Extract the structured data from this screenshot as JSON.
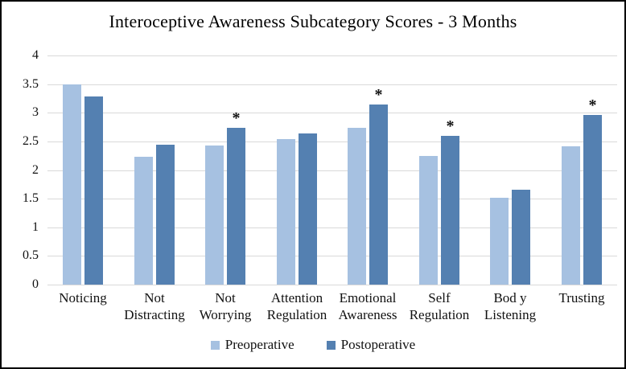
{
  "chart_data": {
    "type": "bar",
    "title": "Interoceptive Awareness Subcategory Scores - 3 Months",
    "categories": [
      "Noticing",
      "Not Distracting",
      "Not Worrying",
      "Attention Regulation",
      "Emotional Awareness",
      "Self Regulation",
      "Bod y Listening",
      "Trusting"
    ],
    "category_label_lines": [
      [
        "Noticing"
      ],
      [
        "Not",
        "Distracting"
      ],
      [
        "Not",
        "Worrying"
      ],
      [
        "Attention",
        "Regulation"
      ],
      [
        "Emotional",
        "Awareness"
      ],
      [
        "Self",
        "Regulation"
      ],
      [
        "Bod y",
        "Listening"
      ],
      [
        "Trusting"
      ]
    ],
    "series": [
      {
        "name": "Preoperative",
        "color": "#a6c1e1",
        "values": [
          3.5,
          2.23,
          2.43,
          2.54,
          2.73,
          2.25,
          1.51,
          2.41
        ]
      },
      {
        "name": "Postoperative",
        "color": "#5480b1",
        "values": [
          3.28,
          2.44,
          2.74,
          2.64,
          3.14,
          2.59,
          1.65,
          2.96
        ]
      }
    ],
    "significance_marker": "*",
    "significance_on_series": "Postoperative",
    "significant_categories": [
      false,
      false,
      true,
      false,
      true,
      true,
      false,
      true
    ],
    "ylim": [
      0,
      4
    ],
    "ytick_step": 0.5,
    "ytick_labels": [
      "0",
      "0.5",
      "1",
      "1.5",
      "2",
      "2.5",
      "3",
      "3.5",
      "4"
    ],
    "grid": "horizontal",
    "gridline_color": "#d9d9d9",
    "legend_position": "bottom"
  }
}
